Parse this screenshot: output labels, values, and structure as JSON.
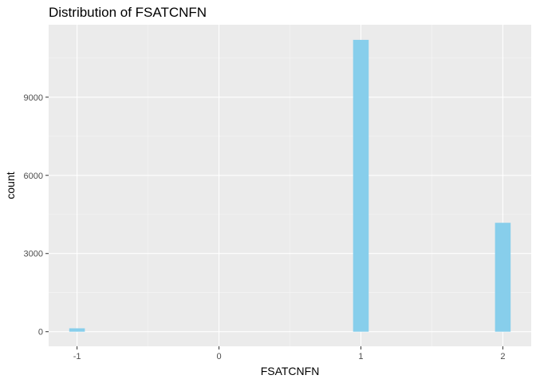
{
  "chart_data": {
    "type": "bar",
    "title": "Distribution of FSATCNFN",
    "xlabel": "FSATCNFN",
    "ylabel": "count",
    "x_ticks": [
      -1,
      0,
      1,
      2
    ],
    "x_tick_labels": [
      "-1",
      "0",
      "1",
      "2"
    ],
    "y_ticks": [
      0,
      3000,
      6000,
      9000
    ],
    "y_tick_labels": [
      "0",
      "3000",
      "6000",
      "9000"
    ],
    "xlim": [
      -1.2,
      2.2
    ],
    "ylim": [
      -560,
      11780
    ],
    "bar_width": 0.11,
    "x": [
      -1,
      1,
      2
    ],
    "values": [
      130,
      11200,
      4180
    ],
    "grid": true,
    "colors": {
      "bar": "#87CEEB",
      "panel": "#EBEBEB",
      "grid_major": "#FFFFFF",
      "grid_minor": "#F5F5F5",
      "tick": "#333333"
    }
  }
}
